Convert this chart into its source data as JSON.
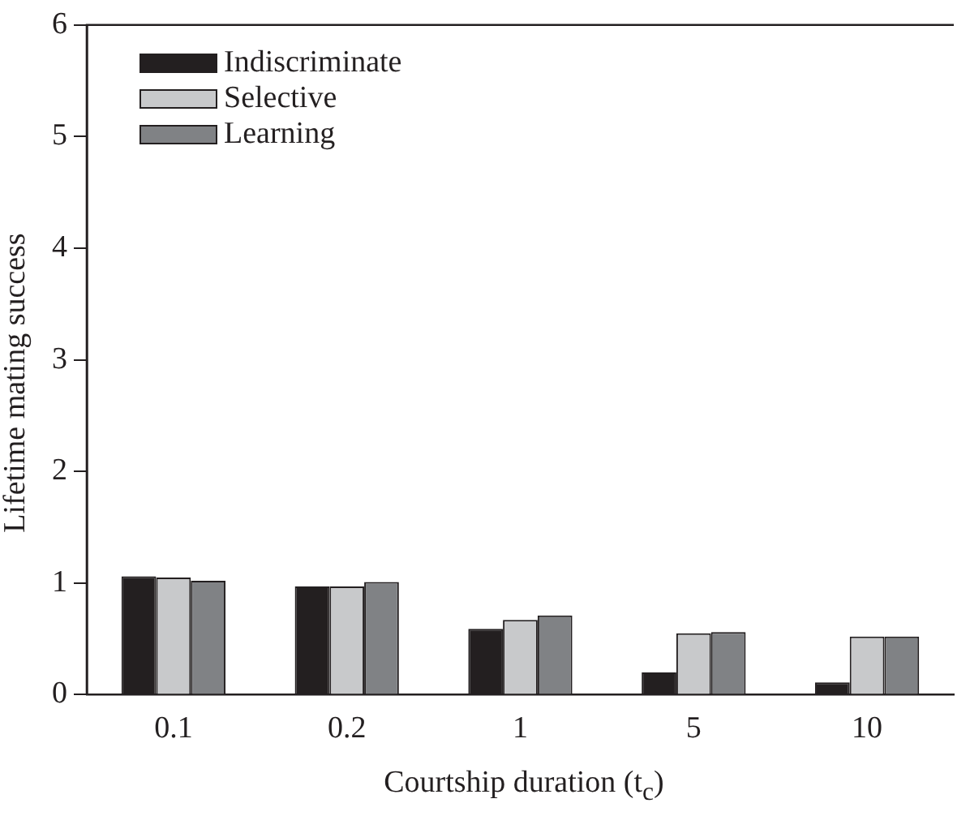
{
  "chart_data": {
    "type": "bar",
    "xlabel": "Courtship duration (t$_{c}$)",
    "ylabel": "Lifetime mating success",
    "categories": [
      "0.1",
      "0.2",
      "1",
      "5",
      "10"
    ],
    "series": [
      {
        "name": "Indiscriminate",
        "color": "#231f20",
        "values": [
          1.06,
          0.97,
          0.59,
          0.2,
          0.11
        ]
      },
      {
        "name": "Selective",
        "color": "#c8c9cb",
        "values": [
          1.05,
          0.97,
          0.67,
          0.55,
          0.52
        ]
      },
      {
        "name": "Learning",
        "color": "#808285",
        "values": [
          1.02,
          1.01,
          0.71,
          0.56,
          0.52
        ]
      }
    ],
    "ylim": [
      0,
      6
    ],
    "yticks": [
      0,
      1,
      2,
      3,
      4,
      5,
      6
    ],
    "grid": false,
    "legend": "top left"
  }
}
